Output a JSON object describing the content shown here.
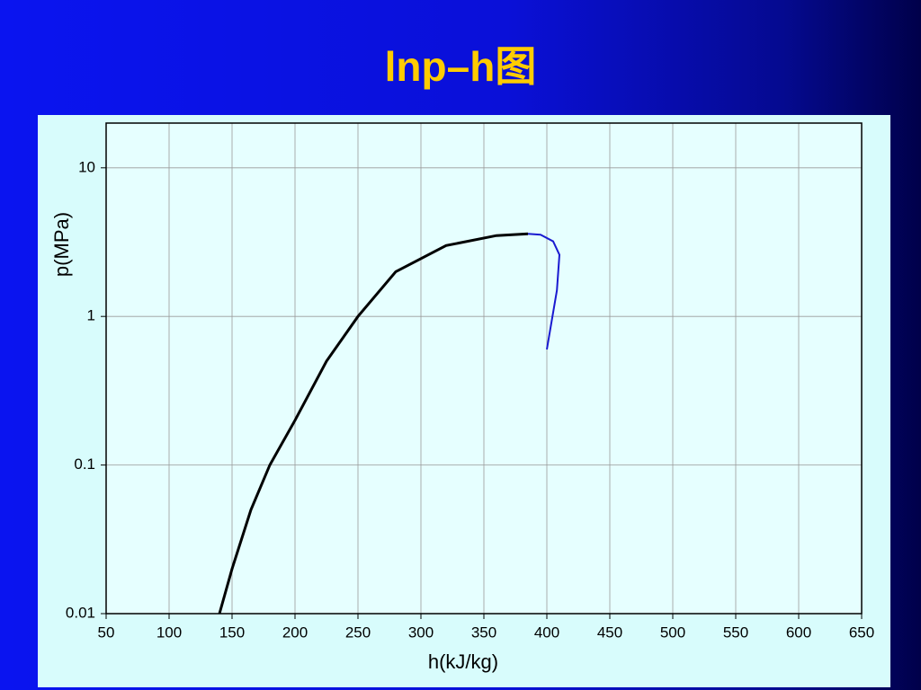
{
  "title": "lnp–h图",
  "chart_data": {
    "type": "line",
    "xlabel": "h(kJ/kg)",
    "ylabel": "p(MPa)",
    "xlim": [
      50,
      650
    ],
    "xticks": [
      50,
      100,
      150,
      200,
      250,
      300,
      350,
      400,
      450,
      500,
      550,
      600,
      650
    ],
    "ylim": [
      0.01,
      20
    ],
    "yticks": [
      0.01,
      0.1,
      1,
      10
    ],
    "log_y": true,
    "grid": true,
    "series": [
      {
        "color": "#000000",
        "x": [
          140,
          150,
          165,
          180,
          200,
          225,
          250,
          280,
          320,
          360,
          385
        ],
        "values": [
          0.01,
          0.02,
          0.05,
          0.1,
          0.2,
          0.5,
          1,
          2,
          3,
          3.5,
          3.6
        ]
      },
      {
        "color": "#1a1ad0",
        "x": [
          385,
          395,
          405,
          410,
          408,
          400
        ],
        "values": [
          3.6,
          3.55,
          3.2,
          2.6,
          1.5,
          0.6
        ]
      }
    ]
  }
}
